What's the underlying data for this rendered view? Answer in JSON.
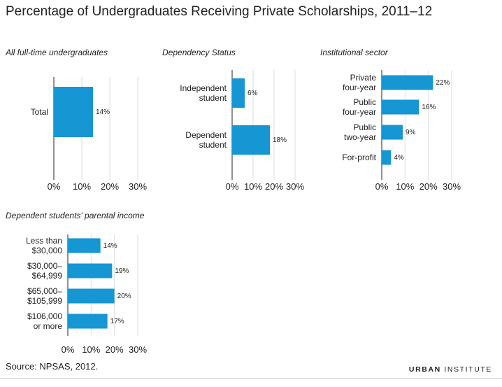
{
  "title": "Percentage of Undergraduates Receiving Private Scholarships, 2011–12",
  "source": "Source: NPSAS, 2012.",
  "brand": {
    "strong": "URBAN",
    "rest": " INSTITUTE"
  },
  "colors": {
    "bar": "#1696d2",
    "grid": "#dedede",
    "axis": "#222222"
  },
  "chart_data": [
    {
      "type": "bar",
      "orientation": "horizontal",
      "title": "All full-time undergraduates",
      "categories": [
        [
          "Total"
        ]
      ],
      "values": [
        14
      ],
      "xlim": [
        0,
        30
      ],
      "xticks": [
        "0%",
        "10%",
        "20%",
        "30%"
      ],
      "value_suffix": "%"
    },
    {
      "type": "bar",
      "orientation": "horizontal",
      "title": "Dependency Status",
      "categories": [
        [
          "Independent",
          "student"
        ],
        [
          "Dependent",
          "student"
        ]
      ],
      "values": [
        6,
        18
      ],
      "xlim": [
        0,
        30
      ],
      "xticks": [
        "0%",
        "10%",
        "20%",
        "30%"
      ],
      "value_suffix": "%"
    },
    {
      "type": "bar",
      "orientation": "horizontal",
      "title": "Institutional sector",
      "categories": [
        [
          "Private",
          "four-year"
        ],
        [
          "Public",
          "four-year"
        ],
        [
          "Public",
          "two-year"
        ],
        [
          "For-profit"
        ]
      ],
      "values": [
        22,
        16,
        9,
        4
      ],
      "xlim": [
        0,
        30
      ],
      "xticks": [
        "0%",
        "10%",
        "20%",
        "30%"
      ],
      "value_suffix": "%"
    },
    {
      "type": "bar",
      "orientation": "horizontal",
      "title": "Dependent students' parental income",
      "categories": [
        [
          "Less than",
          "$30,000"
        ],
        [
          "$30,000–",
          "$64,999"
        ],
        [
          "$65,000–",
          "$105,999"
        ],
        [
          "$106,000",
          "or more"
        ]
      ],
      "values": [
        14,
        19,
        20,
        17
      ],
      "xlim": [
        0,
        30
      ],
      "xticks": [
        "0%",
        "10%",
        "20%",
        "30%"
      ],
      "value_suffix": "%"
    }
  ]
}
